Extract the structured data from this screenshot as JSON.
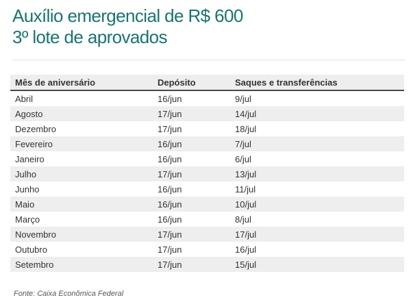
{
  "chart_data": {
    "type": "table",
    "title_lines": [
      "Auxílio emergencial de R$ 600",
      "3º lote de aprovados"
    ],
    "columns": [
      "Mês de aniversário",
      "Depósito",
      "Saques e transferências"
    ],
    "rows": [
      [
        "Abril",
        "16/jun",
        "9/jul"
      ],
      [
        "Agosto",
        "17/jun",
        "14/jul"
      ],
      [
        "Dezembro",
        "17/jun",
        "18/jul"
      ],
      [
        "Fevereiro",
        "16/jun",
        "7/jul"
      ],
      [
        "Janeiro",
        "16/jun",
        "6/jul"
      ],
      [
        "Julho",
        "17/jun",
        "13/jul"
      ],
      [
        "Junho",
        "16/jun",
        "11/jul"
      ],
      [
        "Maio",
        "16/jun",
        "10/jul"
      ],
      [
        "Março",
        "16/jun",
        "8/jul"
      ],
      [
        "Novembro",
        "17/jun",
        "17/jul"
      ],
      [
        "Outubro",
        "17/jun",
        "16/jul"
      ],
      [
        "Setembro",
        "17/jun",
        "15/jul"
      ]
    ],
    "source": "Fonte: Caixa Econômica Federal",
    "layout": "striped-table, stripe on even rows, no grid lines",
    "colors": {
      "accent_teal": "#17756f",
      "stripe_gray": "#eeeeee",
      "header_border": "#4a4a4a",
      "body_text": "#333333",
      "source_text": "#555555",
      "divider": "#e2e2e2"
    }
  }
}
